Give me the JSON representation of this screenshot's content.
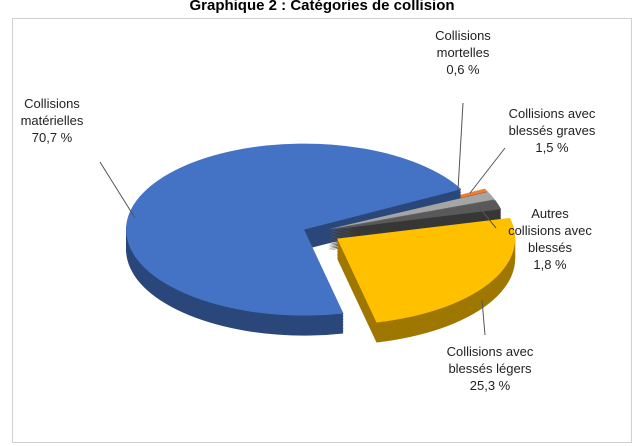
{
  "chart_data": {
    "type": "pie",
    "title": "Graphique 2 : Catégories de collision",
    "categories": [
      "Collisions mortelles",
      "Collisions avec blessés graves",
      "Autres collisions avec blessés",
      "Collisions avec blessés légers",
      "Collisions matérielles"
    ],
    "values": [
      0.6,
      1.5,
      1.8,
      25.3,
      70.7
    ],
    "value_labels": [
      "0,6 %",
      "1,5 %",
      "1,8 %",
      "25,3 %",
      "70,7 %"
    ],
    "colors": [
      "#ed7d31",
      "#a5a5a5",
      "#595959",
      "#ffc000",
      "#4472c4"
    ]
  }
}
